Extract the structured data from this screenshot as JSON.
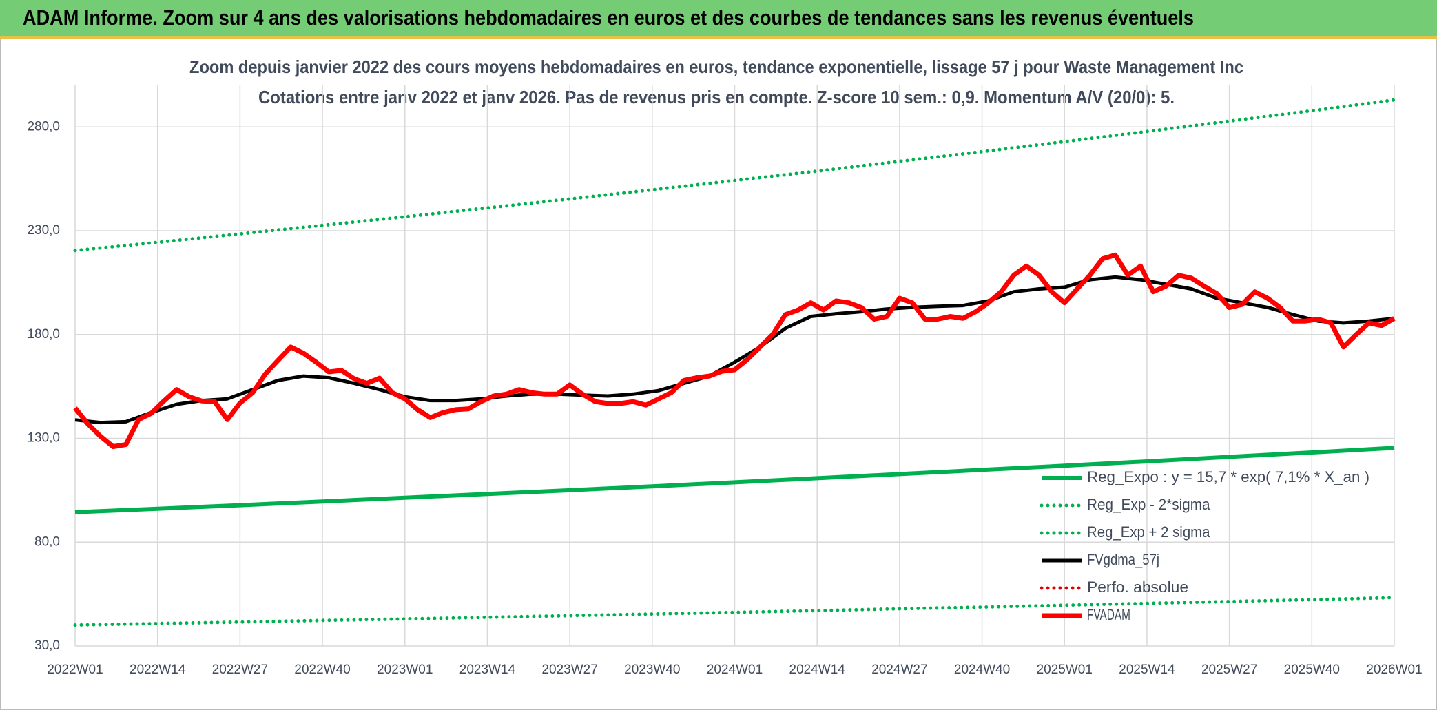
{
  "header": {
    "title": "ADAM Informe. Zoom sur 4 ans des valorisations hebdomadaires en euros et des courbes de tendances sans les revenus éventuels"
  },
  "chart_data": {
    "type": "line",
    "title": "Zoom depuis janvier 2022 des cours moyens hebdomadaires en euros, tendance exponentielle, lissage 57 j pour Waste Management Inc",
    "subtitle": "Cotations entre janv 2022 et janv 2026. Pas de revenus pris en compte. Z-score 10 sem.: 0,9. Momentum A/V (20/0): 5.",
    "xlim": [
      0,
      208
    ],
    "xticks": [
      {
        "value": 0,
        "label": "2022W01"
      },
      {
        "value": 13,
        "label": "2022W14"
      },
      {
        "value": 26,
        "label": "2022W27"
      },
      {
        "value": 39,
        "label": "2022W40"
      },
      {
        "value": 52,
        "label": "2023W01"
      },
      {
        "value": 65,
        "label": "2023W14"
      },
      {
        "value": 78,
        "label": "2023W27"
      },
      {
        "value": 91,
        "label": "2023W40"
      },
      {
        "value": 104,
        "label": "2024W01"
      },
      {
        "value": 117,
        "label": "2024W14"
      },
      {
        "value": 130,
        "label": "2024W27"
      },
      {
        "value": 143,
        "label": "2024W40"
      },
      {
        "value": 156,
        "label": "2025W01"
      },
      {
        "value": 169,
        "label": "2025W14"
      },
      {
        "value": 182,
        "label": "2025W27"
      },
      {
        "value": 195,
        "label": "2025W40"
      },
      {
        "value": 208,
        "label": "2026W01"
      }
    ],
    "ylim": [
      30,
      300
    ],
    "yticks": [
      {
        "value": 30,
        "label": "30,0"
      },
      {
        "value": 80,
        "label": "80,0"
      },
      {
        "value": 130,
        "label": "130,0"
      },
      {
        "value": 180,
        "label": "180,0"
      },
      {
        "value": 230,
        "label": "230,0"
      },
      {
        "value": 280,
        "label": "280,0"
      }
    ],
    "grid": true,
    "legend": "lower right",
    "series": [
      {
        "name": "Reg_Expo : y = 15,7 * exp( 7,1% *  X_an )",
        "color": "#00b050",
        "style": "solid",
        "x": [
          0,
          13,
          26,
          39,
          52,
          65,
          78,
          91,
          104,
          117,
          130,
          143,
          156,
          169,
          182,
          195,
          208
        ],
        "values": [
          94.4,
          96.1,
          97.8,
          99.6,
          101.4,
          103.2,
          105.0,
          106.9,
          108.8,
          110.8,
          112.8,
          114.8,
          116.8,
          118.9,
          121.1,
          123.2,
          125.4
        ]
      },
      {
        "name": "Reg_Exp - 2*sigma",
        "color": "#00b050",
        "style": "dotted",
        "x": [
          0,
          13,
          26,
          39,
          52,
          65,
          78,
          91,
          104,
          117,
          130,
          143,
          156,
          169,
          182,
          195,
          208
        ],
        "values": [
          40.1,
          40.8,
          41.5,
          42.3,
          43.0,
          43.8,
          44.6,
          45.4,
          46.2,
          47.0,
          47.9,
          48.7,
          49.6,
          50.5,
          51.4,
          52.3,
          53.3
        ]
      },
      {
        "name": "Reg_Exp + 2 sigma",
        "color": "#00b050",
        "style": "dotted",
        "x": [
          0,
          13,
          26,
          39,
          52,
          65,
          78,
          91,
          104,
          117,
          130,
          143,
          156,
          169,
          182,
          195,
          208
        ],
        "values": [
          220.5,
          224.4,
          228.5,
          232.6,
          236.7,
          241.0,
          245.3,
          249.7,
          254.2,
          258.7,
          263.4,
          268.1,
          272.9,
          277.8,
          282.8,
          287.8,
          293.0
        ]
      },
      {
        "name": "FVgdma_57j",
        "color": "#000000",
        "style": "solid",
        "x": [
          0,
          4,
          8,
          12,
          16,
          20,
          24,
          28,
          32,
          36,
          40,
          44,
          48,
          52,
          56,
          60,
          64,
          68,
          72,
          76,
          80,
          84,
          88,
          92,
          96,
          100,
          104,
          108,
          112,
          116,
          120,
          124,
          128,
          132,
          136,
          140,
          144,
          148,
          152,
          156,
          160,
          164,
          168,
          172,
          176,
          180,
          184,
          188,
          192,
          196,
          200,
          204,
          208
        ],
        "values": [
          138.9,
          137.6,
          138,
          142.4,
          146.4,
          148.2,
          149,
          153.5,
          157.9,
          160,
          159.2,
          156.5,
          153.5,
          150,
          148.2,
          148.2,
          149,
          150.4,
          151.3,
          151.3,
          150.8,
          150.4,
          151.3,
          153,
          156.5,
          160,
          166.7,
          174,
          183,
          188.7,
          190,
          191,
          192.3,
          193.1,
          193.6,
          194,
          196.2,
          200.6,
          202,
          202.8,
          206.4,
          207.7,
          206.4,
          204.2,
          202,
          197.5,
          195.3,
          193.1,
          189.6,
          186.5,
          185.6,
          186.5,
          187.8
        ]
      },
      {
        "name": "Perfo. absolue",
        "color": "#e00000",
        "style": "dotted",
        "x": [],
        "values": []
      },
      {
        "name": "FVADAM",
        "color": "#ff0000",
        "style": "thick",
        "x": [
          0,
          2,
          4,
          6,
          8,
          10,
          12,
          14,
          16,
          18,
          20,
          22,
          24,
          26,
          28,
          30,
          32,
          34,
          36,
          38,
          40,
          42,
          44,
          46,
          48,
          50,
          52,
          54,
          56,
          58,
          60,
          62,
          64,
          66,
          68,
          70,
          72,
          74,
          76,
          78,
          80,
          82,
          84,
          86,
          88,
          90,
          92,
          94,
          96,
          98,
          100,
          102,
          104,
          106,
          108,
          110,
          112,
          114,
          116,
          118,
          120,
          122,
          124,
          126,
          128,
          130,
          132,
          134,
          136,
          138,
          140,
          142,
          144,
          146,
          148,
          150,
          152,
          154,
          156,
          158,
          160,
          162,
          164,
          166,
          168,
          170,
          172,
          174,
          176,
          178,
          180,
          182,
          184,
          186,
          188,
          190,
          192,
          194,
          196,
          198,
          200,
          202,
          204,
          206,
          208
        ],
        "values": [
          144.6,
          137,
          131,
          126,
          127,
          139,
          142,
          148,
          153.5,
          150,
          148,
          147.7,
          139,
          147,
          152,
          161,
          167.6,
          174,
          171,
          166.7,
          162,
          162.7,
          158.7,
          156.5,
          159,
          152,
          149,
          143.8,
          140,
          142.4,
          143.8,
          144.2,
          147.7,
          150.4,
          151.3,
          153.5,
          152,
          151.3,
          151.3,
          155.7,
          151.3,
          147.7,
          146.8,
          146.8,
          147.7,
          146,
          149,
          152,
          157.9,
          159.2,
          160,
          162.3,
          163,
          168,
          174,
          180,
          189.6,
          191.8,
          195.3,
          191.8,
          196.2,
          195.3,
          193,
          187.4,
          188.7,
          197.5,
          195.3,
          187.4,
          187.4,
          188.7,
          187.8,
          191,
          195.3,
          200.6,
          208.6,
          213,
          208.6,
          200.6,
          195.3,
          202,
          208.6,
          216.5,
          218.3,
          208.6,
          213,
          200.6,
          203.3,
          208.6,
          207.2,
          203.3,
          199.8,
          193,
          194.5,
          200.6,
          197.5,
          193,
          186.5,
          186.5,
          187.4,
          185.6,
          174,
          180,
          185.6,
          184.3,
          187.8
        ]
      }
    ]
  }
}
